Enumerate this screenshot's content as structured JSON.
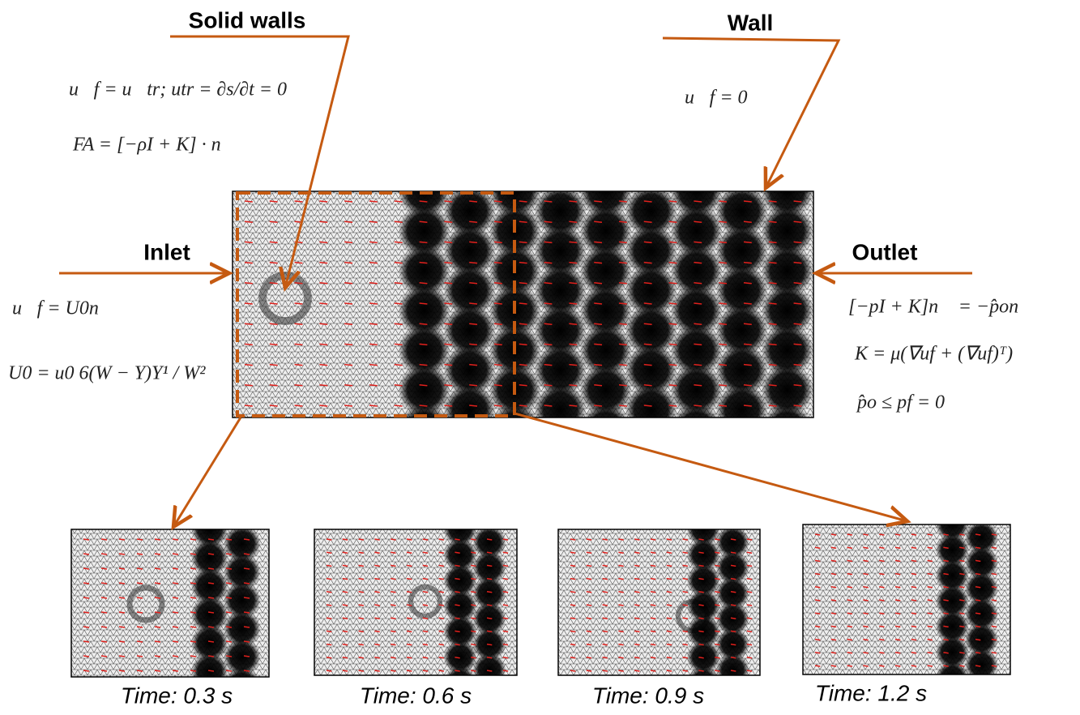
{
  "labels": {
    "solid_walls": "Solid walls",
    "wall": "Wall",
    "inlet": "Inlet",
    "outlet": "Outlet"
  },
  "equations": {
    "solid_walls": [
      "u⃗f = u⃗tr;   utr = ∂s/∂t = 0",
      "FA = [−ρI + K] · n"
    ],
    "wall": [
      "u⃗f = 0"
    ],
    "inlet": [
      "u⃗f = U0n⃗",
      "U0 = u0 6(W − Y)Y¹ / W²"
    ],
    "outlet": [
      "[−pI + K]n⃗ = −p̂on⃗",
      "K = μ(∇uf + (∇uf)ᵀ)",
      "p̂o ≤ pf = 0"
    ]
  },
  "snapshots": [
    {
      "label": "Time: 0.3 s"
    },
    {
      "label": "Time: 0.6 s"
    },
    {
      "label": "Time: 0.9 s"
    },
    {
      "label": "Time: 1.2 s"
    }
  ]
}
